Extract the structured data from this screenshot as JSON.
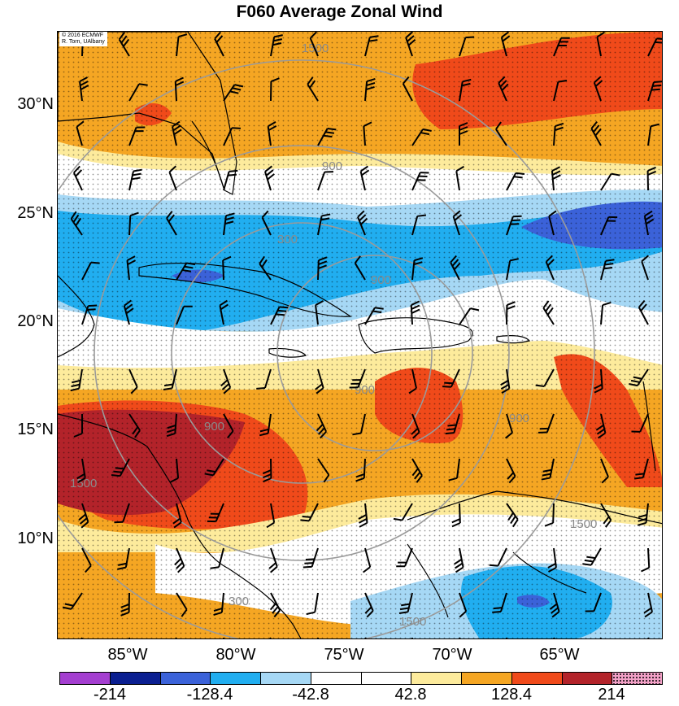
{
  "title": "F060 Average Zonal Wind",
  "credit": {
    "line1": "© 2016 ECMWF",
    "line2": "R. Torn, UAlbany"
  },
  "map": {
    "lat_labels": [
      "30°N",
      "25°N",
      "20°N",
      "15°N",
      "10°N"
    ],
    "lon_labels": [
      "85°W",
      "80°W",
      "75°W",
      "70°W",
      "65°W"
    ],
    "ring_labels": [
      "1500",
      "900",
      "300",
      "900",
      "900",
      "900",
      "1500",
      "1500",
      "900",
      "1500",
      "300"
    ],
    "ring_label_values_km": [
      300,
      900,
      1500
    ],
    "fill_colors": {
      "orange": "#f5a623",
      "red_orange": "#f04a1a",
      "dark_red": "#b3232a",
      "light_yellow": "#fdeb9c",
      "light_blue": "#a6d8f5",
      "sky_blue": "#21aef0",
      "medium_blue": "#3b62d9",
      "land_outline": "#000000",
      "ring_color": "#9a9a9a"
    }
  },
  "colorbar": {
    "segments": [
      "#a43ed0",
      "#0b1f91",
      "#3b62d9",
      "#21aef0",
      "#a6d8f5",
      "#ffffff",
      "#ffffff",
      "#fdeb9c",
      "#f5a623",
      "#f04a1a",
      "#b3232a",
      "#f2a0c6"
    ],
    "labels": [
      "-214",
      "-128.4",
      "-42.8",
      "42.8",
      "128.4",
      "214"
    ]
  }
}
